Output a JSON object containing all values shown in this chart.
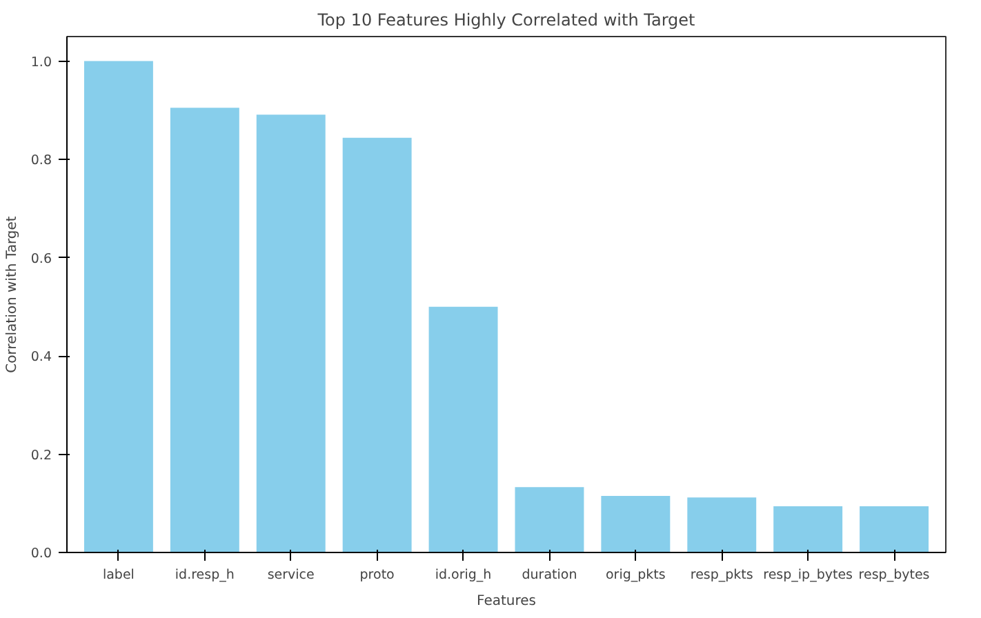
{
  "chart_data": {
    "type": "bar",
    "title": "Top 10 Features Highly Correlated with Target",
    "xlabel": "Features",
    "ylabel": "Correlation with Target",
    "categories": [
      "label",
      "id.resp_h",
      "service",
      "proto",
      "id.orig_h",
      "duration",
      "orig_pkts",
      "resp_pkts",
      "resp_ip_bytes",
      "resp_bytes"
    ],
    "values": [
      1.0,
      0.905,
      0.891,
      0.844,
      0.5,
      0.133,
      0.115,
      0.112,
      0.094,
      0.094
    ],
    "color": "#87ceeb",
    "ylim": [
      0,
      1.05
    ],
    "yticks": [
      {
        "value": 0,
        "label": "0.0"
      },
      0.2,
      0.4,
      0.6,
      0.8,
      {
        "value": 1,
        "label": "1.0"
      }
    ],
    "grid": false
  }
}
